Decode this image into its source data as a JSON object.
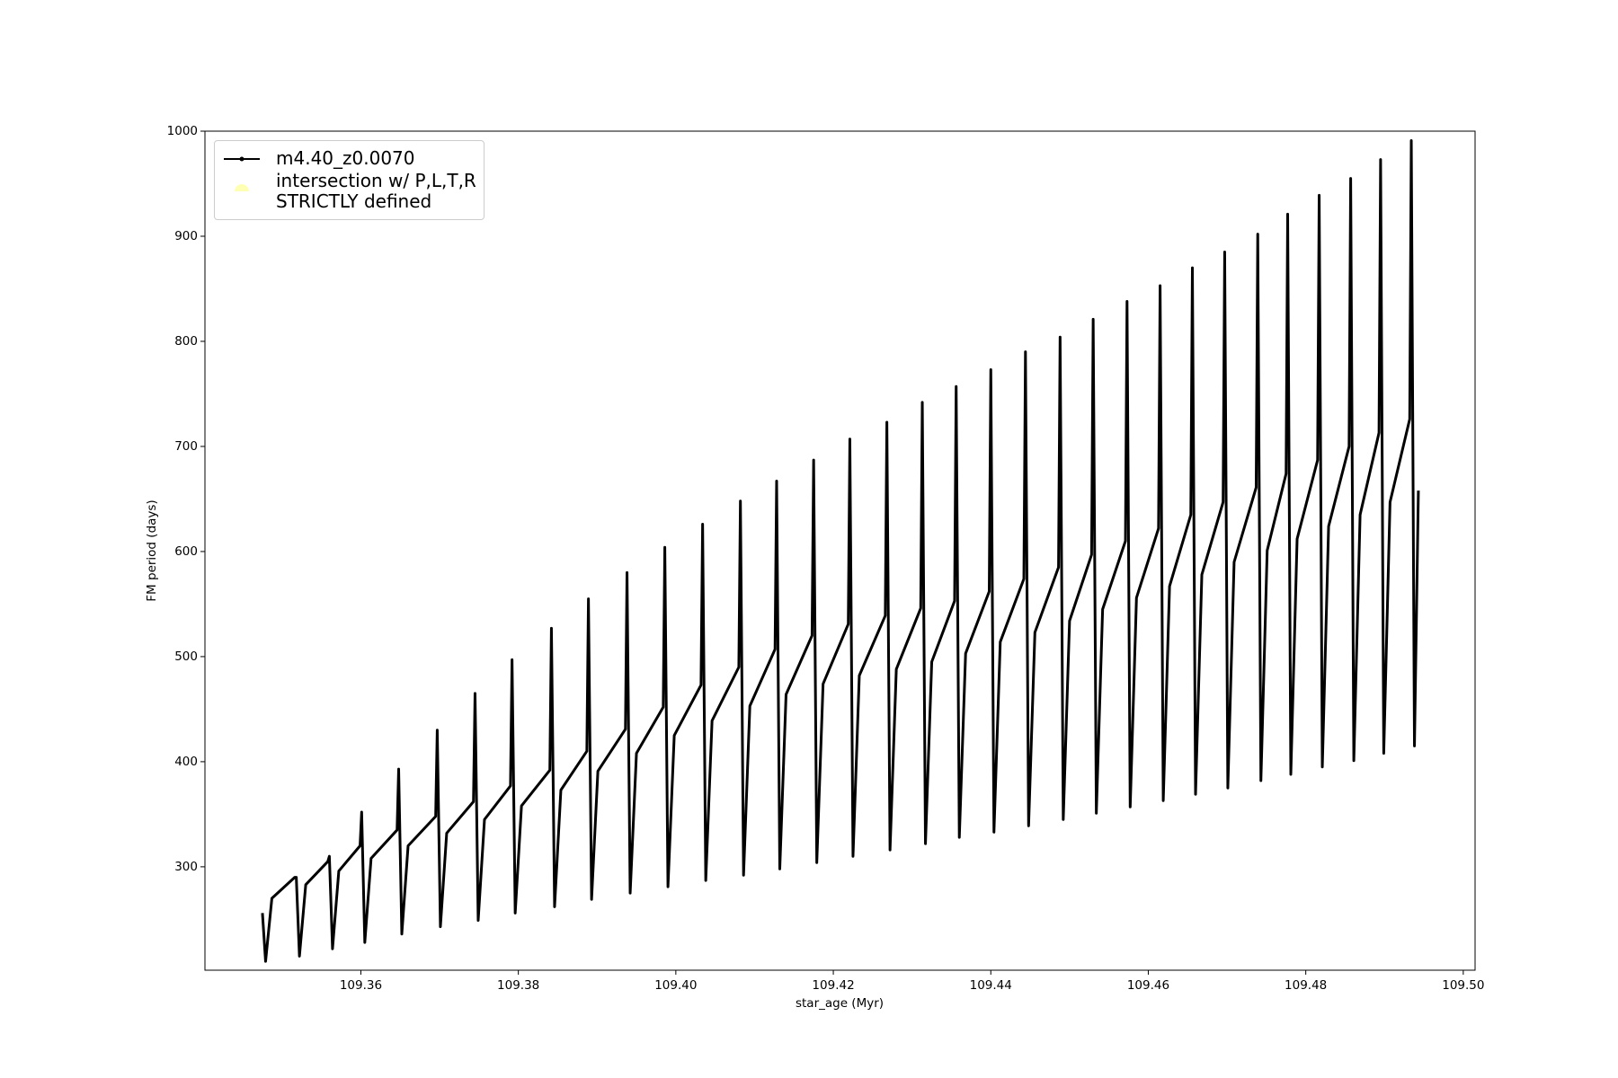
{
  "chart_data": {
    "type": "line",
    "x_label": "star_age (Myr)",
    "y_label": "FM period (days)",
    "xlim": [
      109.3402,
      109.5015
    ],
    "ylim": [
      201.6,
      1000
    ],
    "xticks": [
      109.36,
      109.38,
      {
        "value": 109.4,
        "label": "109.40"
      },
      109.42,
      109.44,
      109.46,
      109.48,
      {
        "value": 109.5,
        "label": "109.50"
      }
    ],
    "yticks": [
      300,
      400,
      500,
      600,
      700,
      800,
      900,
      1000
    ],
    "grid": false,
    "legend": "upper left",
    "series": [
      {
        "name": "m4.40_z0.0070",
        "color": "#000000",
        "x": [
          109.3475,
          109.3479,
          109.3487,
          109.3516,
          109.3518,
          109.3522,
          109.353,
          109.3558,
          109.356,
          109.3564,
          109.3572,
          109.3599,
          109.3601,
          109.3605,
          109.3613,
          109.3646,
          109.3648,
          109.3652,
          109.366,
          109.3695,
          109.3697,
          109.3701,
          109.3709,
          109.3743,
          109.3745,
          109.3749,
          109.3757,
          109.379,
          109.3792,
          109.3796,
          109.3804,
          109.384,
          109.3842,
          109.3846,
          109.3854,
          109.3887,
          109.3889,
          109.3893,
          109.3901,
          109.3936,
          109.3938,
          109.3942,
          109.395,
          109.3984,
          109.3986,
          109.399,
          109.3998,
          109.4032,
          109.4034,
          109.4038,
          109.4046,
          109.408,
          109.4082,
          109.4086,
          109.4094,
          109.4126,
          109.4128,
          109.4132,
          109.414,
          109.4173,
          109.4175,
          109.4179,
          109.4187,
          109.4219,
          109.4221,
          109.4225,
          109.4233,
          109.4266,
          109.4268,
          109.4272,
          109.428,
          109.4311,
          109.4313,
          109.4317,
          109.4325,
          109.4354,
          109.4356,
          109.436,
          109.4368,
          109.4398,
          109.44,
          109.4404,
          109.4412,
          109.4442,
          109.4444,
          109.4448,
          109.4456,
          109.4486,
          109.4488,
          109.4492,
          109.45,
          109.4528,
          109.453,
          109.4534,
          109.4542,
          109.4571,
          109.4573,
          109.4577,
          109.4585,
          109.4613,
          109.4615,
          109.4619,
          109.4627,
          109.4654,
          109.4656,
          109.466,
          109.4668,
          109.4695,
          109.4697,
          109.4701,
          109.4709,
          109.4737,
          109.4739,
          109.4743,
          109.4751,
          109.4775,
          109.4777,
          109.4781,
          109.4789,
          109.4815,
          109.4817,
          109.4821,
          109.4829,
          109.4855,
          109.4857,
          109.4861,
          109.4869,
          109.4893,
          109.4895,
          109.4899,
          109.4907,
          109.4932,
          109.4934,
          109.4938,
          109.4943
        ],
        "values": [
          256,
          210,
          270,
          290,
          290,
          215,
          283,
          305,
          310,
          222,
          296,
          320,
          352,
          228,
          308,
          335,
          393,
          236,
          320,
          348,
          430,
          243,
          332,
          362,
          465,
          249,
          345,
          377,
          497,
          256,
          358,
          392,
          527,
          262,
          373,
          410,
          555,
          269,
          391,
          431,
          580,
          275,
          408,
          452,
          604,
          281,
          425,
          473,
          626,
          287,
          439,
          490,
          648,
          292,
          453,
          507,
          667,
          298,
          464,
          520,
          687,
          304,
          474,
          531,
          707,
          310,
          482,
          539,
          723,
          316,
          488,
          546,
          742,
          322,
          495,
          553,
          757,
          328,
          503,
          562,
          773,
          333,
          514,
          574,
          790,
          339,
          523,
          585,
          804,
          345,
          534,
          597,
          821,
          351,
          545,
          610,
          838,
          357,
          556,
          622,
          853,
          363,
          567,
          635,
          870,
          369,
          578,
          647,
          885,
          375,
          590,
          661,
          902,
          382,
          601,
          674,
          921,
          388,
          612,
          687,
          939,
          395,
          624,
          700,
          955,
          401,
          635,
          713,
          973,
          408,
          647,
          726,
          991,
          415,
          658
        ]
      },
      {
        "name": "intersection w/ P,L,T,R\nSTRICTLY defined",
        "color": "#ffffb3",
        "x": [],
        "values": []
      }
    ]
  }
}
